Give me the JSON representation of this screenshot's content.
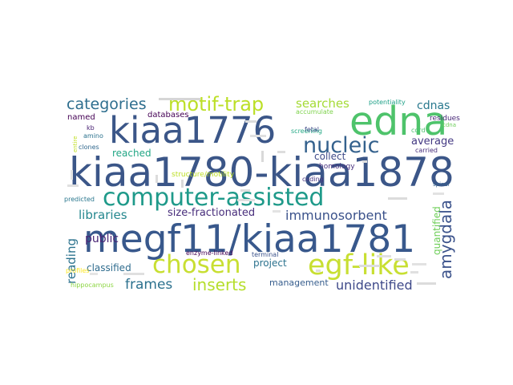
{
  "word_cloud": {
    "words": [
      {
        "text": "kiaa1780-kiaa1878",
        "color": "#3b5688"
      },
      {
        "text": "megf11/kiaa1781",
        "color": "#38588c"
      },
      {
        "text": "kiaa1776",
        "color": "#3b5688"
      },
      {
        "text": "edna",
        "color": "#4ec36b"
      },
      {
        "text": "computer-assisted",
        "color": "#1f9a8a"
      },
      {
        "text": "egf-like",
        "color": "#c8df32"
      },
      {
        "text": "chosen",
        "color": "#c8df32"
      },
      {
        "text": "nucleic",
        "color": "#34618d"
      },
      {
        "text": "motif-trap",
        "color": "#bcdf27"
      },
      {
        "text": "categories",
        "color": "#2e6e8e"
      },
      {
        "text": "inserts",
        "color": "#b5de2b"
      },
      {
        "text": "amygdala",
        "color": "#3b528b"
      },
      {
        "text": "unidentified",
        "color": "#3e4989"
      },
      {
        "text": "immunosorbent",
        "color": "#3b528b"
      },
      {
        "text": "size-fractionated",
        "color": "#472d7b"
      },
      {
        "text": "libraries",
        "color": "#24878e"
      },
      {
        "text": "frames",
        "color": "#2c718e"
      },
      {
        "text": "searches",
        "color": "#a5db36"
      },
      {
        "text": "cdnas",
        "color": "#29798e"
      },
      {
        "text": "public",
        "color": "#482475"
      },
      {
        "text": "classified",
        "color": "#2f6c8e"
      },
      {
        "text": "reading",
        "color": "#2c738e"
      },
      {
        "text": "project",
        "color": "#2c728e"
      },
      {
        "text": "management",
        "color": "#365d8d"
      },
      {
        "text": "reached",
        "color": "#21a685"
      },
      {
        "text": "average",
        "color": "#443983"
      },
      {
        "text": "collect",
        "color": "#3e4a89"
      },
      {
        "text": "quantified",
        "color": "#6ece58"
      },
      {
        "text": "databases",
        "color": "#440154"
      },
      {
        "text": "named",
        "color": "#440154"
      },
      {
        "text": "structure/motility",
        "color": "#bddf26"
      },
      {
        "text": "homology",
        "color": "#472f7d"
      },
      {
        "text": "potentiality",
        "color": "#1fa188"
      },
      {
        "text": "accumulate",
        "color": "#7fd34e"
      },
      {
        "text": "residues",
        "color": "#482878"
      },
      {
        "text": "screening",
        "color": "#22a884"
      },
      {
        "text": "coding",
        "color": "#46337f"
      },
      {
        "text": "fetal",
        "color": "#3e4a89"
      },
      {
        "text": "spinal",
        "color": "#355f8d"
      },
      {
        "text": "cord",
        "color": "#4ac16d"
      },
      {
        "text": "cdna",
        "color": "#6ccd5a"
      },
      {
        "text": "carried",
        "color": "#472d7b"
      },
      {
        "text": "profiles",
        "color": "#fde725"
      },
      {
        "text": "enzyme-linked",
        "color": "#440154"
      },
      {
        "text": "terminal",
        "color": "#3b528b"
      },
      {
        "text": "predicted",
        "color": "#2a778e"
      },
      {
        "text": "hippocampus",
        "color": "#8ed645"
      },
      {
        "text": "kb",
        "color": "#482173"
      },
      {
        "text": "amino",
        "color": "#2c728e"
      },
      {
        "text": "clones",
        "color": "#31688e"
      },
      {
        "text": "entire",
        "color": "#c0df25"
      }
    ]
  }
}
